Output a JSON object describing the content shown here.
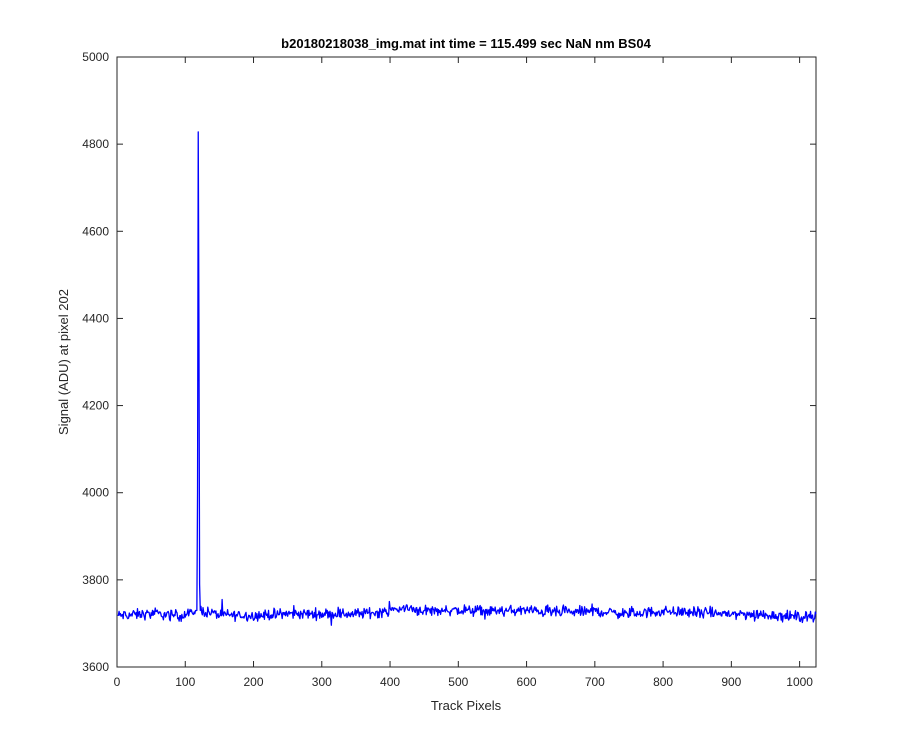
{
  "chart_data": {
    "type": "line",
    "title": "b20180218038_img.mat int time = 115.499 sec  NaN nm BS04",
    "xlabel": "Track Pixels",
    "ylabel": "Signal (ADU) at pixel 202",
    "xlim": [
      0,
      1024
    ],
    "ylim": [
      3600,
      5000
    ],
    "xticks": [
      0,
      100,
      200,
      300,
      400,
      500,
      600,
      700,
      800,
      900,
      1000
    ],
    "yticks": [
      3600,
      3800,
      4000,
      4200,
      4400,
      4600,
      4800,
      5000
    ],
    "grid": false,
    "legend": "none",
    "series": [
      {
        "color": "#0000ff",
        "baseline": 3722,
        "noise_amplitude": 12,
        "spike": {
          "x": 119,
          "y": 4828
        },
        "x": [
          0,
          50,
          100,
          117,
          118,
          119,
          120,
          121,
          122,
          150,
          200,
          250,
          300,
          350,
          400,
          415,
          450,
          500,
          550,
          600,
          650,
          700,
          750,
          800,
          850,
          900,
          950,
          1000,
          1024
        ],
        "y": [
          3718,
          3722,
          3718,
          3730,
          4000,
          4828,
          4400,
          3790,
          3730,
          3720,
          3718,
          3722,
          3722,
          3722,
          3728,
          3735,
          3730,
          3730,
          3728,
          3730,
          3725,
          3728,
          3722,
          3728,
          3725,
          3722,
          3720,
          3715,
          3718
        ]
      }
    ]
  }
}
